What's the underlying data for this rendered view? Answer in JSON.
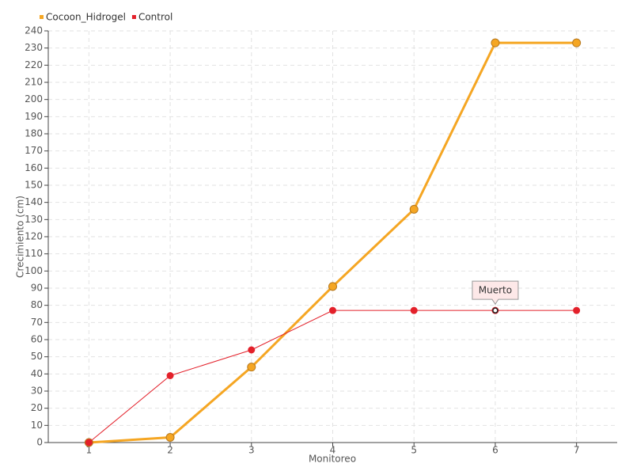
{
  "chart_data": {
    "type": "line",
    "x_label": "Monitoreo",
    "y_label": "Crecimiento (cm)",
    "categories": [
      "1",
      "2",
      "3",
      "4",
      "5",
      "6",
      "7"
    ],
    "series": [
      {
        "name": "Cocoon_Hidrogel",
        "color": "#f5a623",
        "values": [
          0,
          3,
          44,
          91,
          136,
          233,
          233
        ]
      },
      {
        "name": "Control",
        "color": "#e3202a",
        "values": [
          0,
          39,
          54,
          77,
          77,
          77,
          77
        ]
      }
    ],
    "ylim": [
      0,
      240
    ],
    "yticks": [
      0,
      10,
      20,
      30,
      40,
      50,
      60,
      70,
      80,
      90,
      100,
      110,
      120,
      130,
      140,
      150,
      160,
      170,
      180,
      190,
      200,
      210,
      220,
      230,
      240
    ],
    "grid": true,
    "legend": "top-left",
    "annotations": [
      {
        "label": "Muerto",
        "x": "6",
        "y": 77
      }
    ]
  }
}
